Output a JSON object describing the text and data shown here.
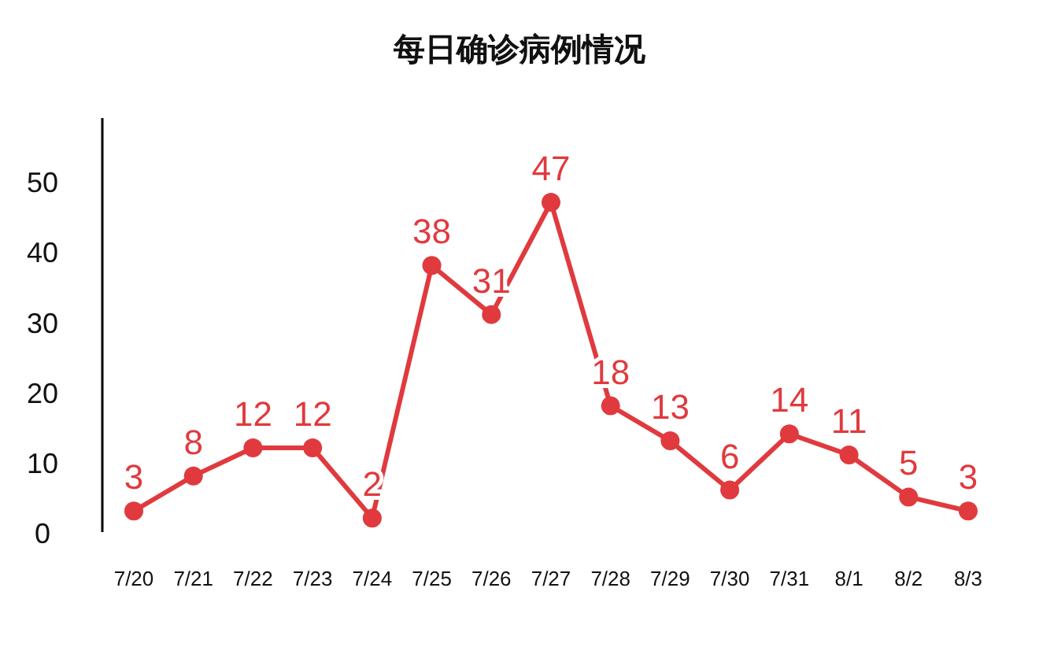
{
  "chart_data": {
    "type": "line",
    "title": "每日确诊病例情况",
    "categories": [
      "7/20",
      "7/21",
      "7/22",
      "7/23",
      "7/24",
      "7/25",
      "7/26",
      "7/27",
      "7/28",
      "7/29",
      "7/30",
      "7/31",
      "8/1",
      "8/2",
      "8/3"
    ],
    "series": [
      {
        "color": "#e03a3e",
        "values": [
          3,
          8,
          12,
          12,
          2,
          38,
          31,
          47,
          18,
          13,
          6,
          14,
          11,
          5,
          3
        ]
      }
    ],
    "ylim": [
      0,
      59
    ],
    "yticks": [
      0,
      10,
      20,
      30,
      40,
      50
    ],
    "grid": false,
    "marker": "circle",
    "line_style": "solid",
    "data_labels": true
  }
}
